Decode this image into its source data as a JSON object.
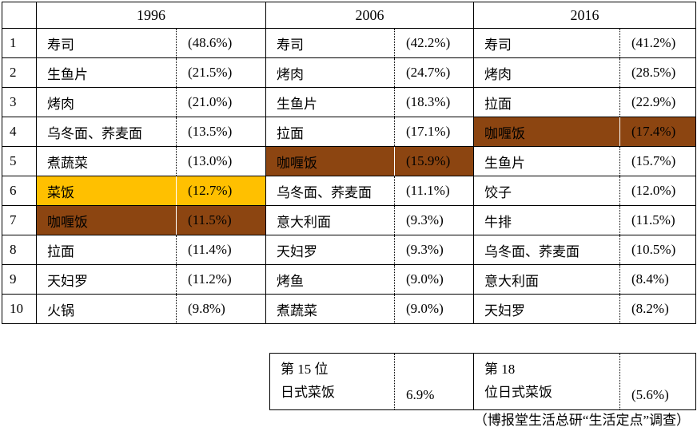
{
  "colors": {
    "highlight_yellow": "#FFC000",
    "highlight_brown": "#8C4511",
    "border": "#000000"
  },
  "chart_data": {
    "type": "table",
    "title": "",
    "years": [
      "1996",
      "2006",
      "2016"
    ],
    "legend_note": "highlight colors mark 菜饭 (yellow) and 咖喱饭 (brown) rank movement",
    "rows": [
      {
        "rank": "1",
        "cells": [
          {
            "name": "寿司",
            "pct": "(48.6%)",
            "hl": ""
          },
          {
            "name": "寿司",
            "pct": "(42.2%)",
            "hl": ""
          },
          {
            "name": "寿司",
            "pct": "(41.2%)",
            "hl": ""
          }
        ]
      },
      {
        "rank": "2",
        "cells": [
          {
            "name": "生鱼片",
            "pct": "(21.5%)",
            "hl": ""
          },
          {
            "name": "烤肉",
            "pct": "(24.7%)",
            "hl": ""
          },
          {
            "name": "烤肉",
            "pct": "(28.5%)",
            "hl": ""
          }
        ]
      },
      {
        "rank": "3",
        "cells": [
          {
            "name": "烤肉",
            "pct": "(21.0%)",
            "hl": ""
          },
          {
            "name": "生鱼片",
            "pct": "(18.3%)",
            "hl": ""
          },
          {
            "name": "拉面",
            "pct": "(22.9%)",
            "hl": ""
          }
        ]
      },
      {
        "rank": "4",
        "cells": [
          {
            "name": "乌冬面、荞麦面",
            "pct": "(13.5%)",
            "hl": ""
          },
          {
            "name": "拉面",
            "pct": "(17.1%)",
            "hl": ""
          },
          {
            "name": "咖喱饭",
            "pct": "(17.4%)",
            "hl": "b"
          }
        ]
      },
      {
        "rank": "5",
        "cells": [
          {
            "name": "煮蔬菜",
            "pct": "(13.0%)",
            "hl": ""
          },
          {
            "name": "咖喱饭",
            "pct": "(15.9%)",
            "hl": "b"
          },
          {
            "name": "生鱼片",
            "pct": "(15.7%)",
            "hl": ""
          }
        ]
      },
      {
        "rank": "6",
        "cells": [
          {
            "name": "菜饭",
            "pct": "(12.7%)",
            "hl": "y"
          },
          {
            "name": "乌冬面、荞麦面",
            "pct": "(11.1%)",
            "hl": ""
          },
          {
            "name": "饺子",
            "pct": "(12.0%)",
            "hl": ""
          }
        ]
      },
      {
        "rank": "7",
        "cells": [
          {
            "name": "咖喱饭",
            "pct": "(11.5%)",
            "hl": "b"
          },
          {
            "name": "意大利面",
            "pct": "(9.3%)",
            "hl": ""
          },
          {
            "name": "牛排",
            "pct": "(11.5%)",
            "hl": ""
          }
        ]
      },
      {
        "rank": "8",
        "cells": [
          {
            "name": "拉面",
            "pct": "(11.4%)",
            "hl": ""
          },
          {
            "name": "天妇罗",
            "pct": "(9.3%)",
            "hl": ""
          },
          {
            "name": "乌冬面、荞麦面",
            "pct": "(10.5%)",
            "hl": ""
          }
        ]
      },
      {
        "rank": "9",
        "cells": [
          {
            "name": "天妇罗",
            "pct": "(11.2%)",
            "hl": ""
          },
          {
            "name": "烤鱼",
            "pct": "(9.0%)",
            "hl": ""
          },
          {
            "name": "意大利面",
            "pct": "(8.4%)",
            "hl": ""
          }
        ]
      },
      {
        "rank": "10",
        "cells": [
          {
            "name": "火锅",
            "pct": "(9.8%)",
            "hl": ""
          },
          {
            "name": "煮蔬菜",
            "pct": "(9.0%)",
            "hl": ""
          },
          {
            "name": "天妇罗",
            "pct": "(8.2%)",
            "hl": ""
          }
        ]
      }
    ],
    "runner_up": [
      {
        "line1": "第 15 位",
        "line2": "日式菜饭",
        "value": "6.9%"
      },
      {
        "line1": "第 18",
        "line2": "位日式菜饭",
        "value": "(5.6%)"
      }
    ],
    "source_note": "（博报堂生活总研“生活定点”调查）"
  }
}
